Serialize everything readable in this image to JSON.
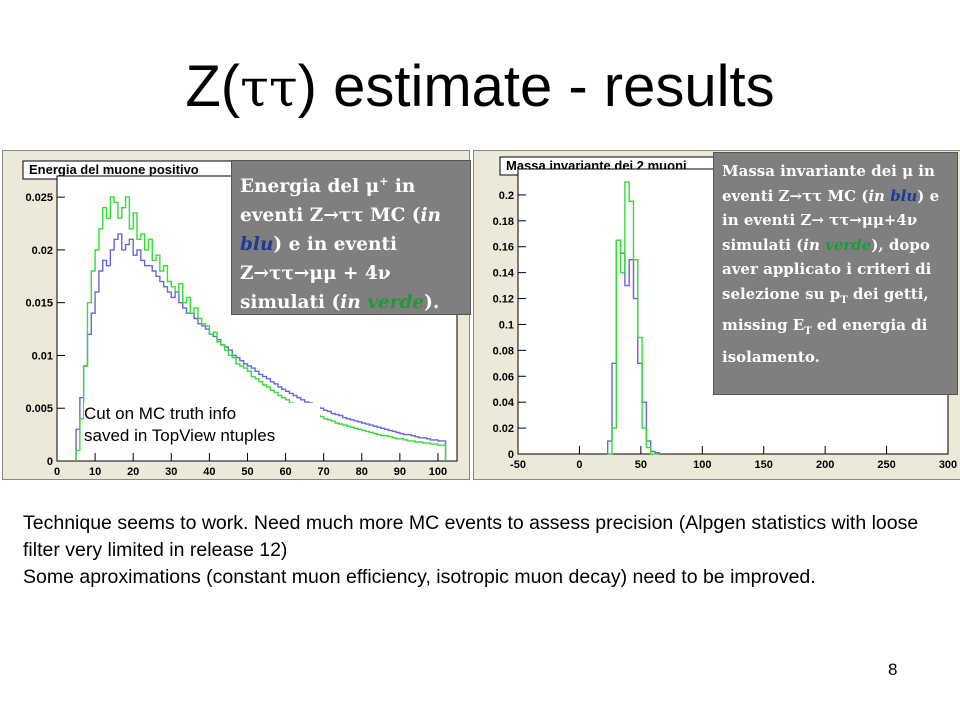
{
  "slide": {
    "title_prefix": "Z(",
    "title_greek": "ττ",
    "title_suffix": ") estimate - results",
    "page_number": "8",
    "body_lines": [
      "Technique seems to work. Need much more MC events to assess precision (Alpgen statistics with loose filter very limited in release 12)",
      "Some aproximations (constant muon efficiency, isotropic muon decay) need to be improved."
    ]
  },
  "left_panel": {
    "caption": {
      "part1": "Energia del μ",
      "sup": "+",
      "part2": " in eventi Z→ττ MC (",
      "in1": "in ",
      "blu": "blu",
      "part3": ") e in eventi Z→ττ→μμ + 4ν simulati (",
      "in2": "in ",
      "verde": "verde",
      "part4": ")."
    },
    "note_line1": "Cut on MC truth info",
    "note_line2": "saved in TopView ntuples"
  },
  "right_panel": {
    "caption": {
      "l1": "Massa invariante dei μ in eventi Z→ττ MC (",
      "in1": "in ",
      "blu": "blu",
      "l2": ") e in eventi Z→ ττ→μμ+4ν simulati (",
      "in2": "in ",
      "verde": "verde",
      "l3": "), dopo aver applicato i criteri di selezione su p",
      "sub1": "T",
      "l4": " dei getti, missing E",
      "sub2": "T",
      "l5": " ed energia di isolamento."
    }
  },
  "chart_data": [
    {
      "type": "histogram",
      "title": "Energia del muone positivo",
      "xlim": [
        0,
        105
      ],
      "ylim": [
        0,
        0.027
      ],
      "xticks": [
        0,
        10,
        20,
        30,
        40,
        50,
        60,
        70,
        80,
        90,
        100
      ],
      "yticks": [
        0,
        0.005,
        0.01,
        0.015,
        0.02,
        0.025
      ],
      "ytick_labels": [
        "0",
        "0.005",
        "0.01",
        "0.015",
        "0.02",
        "0.025"
      ],
      "bin_width": 1,
      "x_start": 5,
      "series": [
        {
          "color": "#6666dd",
          "values": [
            0.003,
            0.006,
            0.009,
            0.012,
            0.014,
            0.016,
            0.018,
            0.019,
            0.0185,
            0.02,
            0.021,
            0.0215,
            0.02,
            0.0205,
            0.021,
            0.0195,
            0.02,
            0.019,
            0.0185,
            0.0185,
            0.018,
            0.0175,
            0.017,
            0.0165,
            0.016,
            0.0155,
            0.016,
            0.015,
            0.0145,
            0.014,
            0.014,
            0.0135,
            0.013,
            0.0128,
            0.0125,
            0.012,
            0.0118,
            0.0115,
            0.011,
            0.0108,
            0.0105,
            0.01,
            0.0098,
            0.0095,
            0.0092,
            0.009,
            0.0088,
            0.0085,
            0.0082,
            0.008,
            0.0078,
            0.0075,
            0.0073,
            0.007,
            0.0068,
            0.0066,
            0.0064,
            0.0062,
            0.006,
            0.0058,
            0.0056,
            0.0055,
            0.0053,
            0.0051,
            0.005,
            0.0048,
            0.0047,
            0.0045,
            0.0044,
            0.0043,
            0.0041,
            0.004,
            0.0039,
            0.0038,
            0.0037,
            0.0036,
            0.0035,
            0.0034,
            0.0033,
            0.0032,
            0.0031,
            0.003,
            0.0029,
            0.0028,
            0.0027,
            0.0026,
            0.0025,
            0.0025,
            0.0024,
            0.0023,
            0.0022,
            0.0022,
            0.0021,
            0.002,
            0.002,
            0.0019,
            0.0019
          ]
        },
        {
          "color": "#33dd33",
          "values": [
            0.001,
            0.004,
            0.009,
            0.015,
            0.018,
            0.02,
            0.022,
            0.024,
            0.023,
            0.025,
            0.0245,
            0.023,
            0.024,
            0.025,
            0.022,
            0.0235,
            0.021,
            0.0215,
            0.02,
            0.021,
            0.019,
            0.0195,
            0.018,
            0.0185,
            0.017,
            0.0165,
            0.016,
            0.0168,
            0.015,
            0.0155,
            0.014,
            0.0145,
            0.0135,
            0.013,
            0.0128,
            0.012,
            0.0122,
            0.0113,
            0.011,
            0.0105,
            0.01,
            0.0098,
            0.0092,
            0.009,
            0.0088,
            0.0085,
            0.008,
            0.0078,
            0.0075,
            0.0072,
            0.007,
            0.0067,
            0.0065,
            0.0062,
            0.006,
            0.0058,
            0.0055,
            0.0054,
            0.0052,
            0.005,
            0.0048,
            0.0047,
            0.0045,
            0.0043,
            0.0042,
            0.004,
            0.0039,
            0.0038,
            0.0036,
            0.0035,
            0.0034,
            0.0033,
            0.0032,
            0.0031,
            0.003,
            0.0029,
            0.0028,
            0.0027,
            0.0026,
            0.0025,
            0.0024,
            0.0024,
            0.0023,
            0.0022,
            0.0021,
            0.0021,
            0.002,
            0.0019,
            0.0019,
            0.0018,
            0.0018,
            0.0017,
            0.0017,
            0.0016,
            0.0016,
            0.0015,
            0.0015
          ]
        }
      ]
    },
    {
      "type": "histogram",
      "title": "Massa invariante dei 2 muoni",
      "xlim": [
        -50,
        300
      ],
      "ylim": [
        0,
        0.22
      ],
      "xticks": [
        -50,
        0,
        50,
        100,
        150,
        200,
        250,
        300
      ],
      "yticks": [
        0,
        0.02,
        0.04,
        0.06,
        0.08,
        0.1,
        0.12,
        0.14,
        0.16,
        0.18,
        0.2
      ],
      "ytick_labels": [
        "0",
        "0.02",
        "0.04",
        "0.06",
        "0.08",
        "0.1",
        "0.12",
        "0.14",
        "0.16",
        "0.18",
        "0.2"
      ],
      "bin_width": 3.5,
      "x_start": 23,
      "series": [
        {
          "color": "#6666dd",
          "values": [
            0.01,
            0.07,
            0.165,
            0.155,
            0.13,
            0.15,
            0.12,
            0.07,
            0.04,
            0.01,
            0.002,
            0.001
          ]
        },
        {
          "color": "#33dd33",
          "values": [
            0.0,
            0.02,
            0.165,
            0.14,
            0.21,
            0.195,
            0.15,
            0.09,
            0.02,
            0.005,
            0.0,
            0.0
          ]
        }
      ]
    }
  ]
}
